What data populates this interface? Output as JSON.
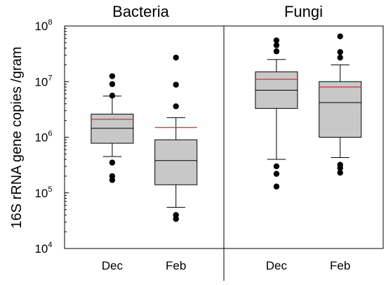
{
  "chart_data": {
    "type": "box",
    "ylabel": "16S rRNA gene copies /gram",
    "yscale": "log",
    "ylim": [
      10000,
      100000000
    ],
    "y_ticks": [
      {
        "base": "10",
        "exp": "4",
        "value": 10000
      },
      {
        "base": "10",
        "exp": "5",
        "value": 100000
      },
      {
        "base": "10",
        "exp": "6",
        "value": 1000000
      },
      {
        "base": "10",
        "exp": "7",
        "value": 10000000
      },
      {
        "base": "10",
        "exp": "8",
        "value": 100000000
      }
    ],
    "panels": [
      {
        "title": "Bacteria",
        "categories": [
          "Dec",
          "Feb"
        ],
        "boxes": [
          {
            "category": "Dec",
            "whisker_low": 450000,
            "q1": 780000,
            "median": 1450000,
            "q3": 2600000,
            "whisker_high": 5500000,
            "mean": 2100000,
            "outliers": [
              12500000,
              9000000,
              5600000,
              350000,
              200000,
              170000
            ]
          },
          {
            "category": "Feb",
            "whisker_low": 55000,
            "q1": 140000,
            "median": 380000,
            "q3": 900000,
            "whisker_high": 2250000,
            "mean": 1500000,
            "outliers": [
              27000000,
              8800000,
              3600000,
              40000,
              34000
            ]
          }
        ]
      },
      {
        "title": "Fungi",
        "categories": [
          "Dec",
          "Feb"
        ],
        "boxes": [
          {
            "category": "Dec",
            "whisker_low": 400000,
            "q1": 3300000,
            "median": 7000000,
            "q3": 15000000,
            "whisker_high": 25000000,
            "mean": 11000000,
            "outliers": [
              55000000,
              45000000,
              35000000,
              300000,
              220000,
              130000
            ]
          },
          {
            "category": "Feb",
            "whisker_low": 430000,
            "q1": 1000000,
            "median": 4200000,
            "q3": 10000000,
            "whisker_high": 20000000,
            "mean": 8000000,
            "outliers": [
              65000000,
              34000000,
              27000000,
              320000,
              280000,
              230000
            ]
          }
        ]
      }
    ],
    "colors": {
      "box_fill": "#c8c8c8",
      "box_stroke": "#000000",
      "median": "#000000",
      "mean": "#e8323c",
      "outlier": "#000000"
    }
  }
}
